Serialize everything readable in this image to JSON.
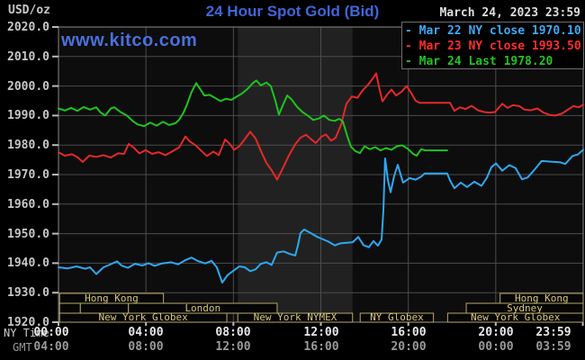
{
  "header": {
    "units_label": "USD/oz",
    "title": "24 Hour Spot Gold (Bid)",
    "timestamp": "March 24, 2023 23:59",
    "watermark": "www.kitco.com"
  },
  "legend": [
    {
      "label": "- Mar 22 NY close 1970.10",
      "color": "#3fa9f5"
    },
    {
      "label": "- Mar 23 NY close 1993.50",
      "color": "#ff2e2e"
    },
    {
      "label": "- Mar 24 Last 1978.20",
      "color": "#21c421"
    }
  ],
  "axes": {
    "ny_label": "NY Time",
    "gmt_label": "GMT",
    "y_ticks": [
      "2020.0",
      "2010.0",
      "2000.0",
      "1990.0",
      "1980.0",
      "1970.0",
      "1960.0",
      "1950.0",
      "1940.0",
      "1930.0",
      "1920.0"
    ],
    "x_ticks_ny": [
      "00:00",
      "04:00",
      "08:00",
      "12:00",
      "16:00",
      "20:00",
      "23:59"
    ],
    "x_ticks_gmt": [
      "04:00",
      "08:00",
      "12:00",
      "16:00",
      "20:00",
      "00:00",
      "03:59"
    ]
  },
  "sessions": [
    {
      "row": 1,
      "boxes": [
        {
          "label": "Hong Kong",
          "start_h": 0.05,
          "end_h": 4.8
        },
        {
          "label": "Hong Kong",
          "start_h": 20.2,
          "end_h": 24
        }
      ]
    },
    {
      "row": 2,
      "boxes": [
        {
          "label": "",
          "start_h": 0.05,
          "end_h": 1.0
        },
        {
          "label": "",
          "start_h": 1.0,
          "end_h": 3.2
        },
        {
          "label": "London",
          "start_h": 3.2,
          "end_h": 10.0
        },
        {
          "label": "Sydney",
          "start_h": 18.65,
          "end_h": 24
        }
      ]
    },
    {
      "row": 3,
      "boxes": [
        {
          "label": "New York Globex",
          "start_h": 0.05,
          "end_h": 7.7
        },
        {
          "label": "New York NYMEX",
          "start_h": 8.2,
          "end_h": 13.45
        },
        {
          "label": "NY Globex",
          "start_h": 13.8,
          "end_h": 17.15
        },
        {
          "label": "New York Globex",
          "start_h": 17.8,
          "end_h": 24
        }
      ]
    }
  ],
  "chart_data": {
    "type": "line",
    "title": "24 Hour Spot Gold (Bid)",
    "ylabel": "USD/oz",
    "ylim": [
      1920,
      2020
    ],
    "x_unit": "hours NY time",
    "xlim": [
      0,
      24
    ],
    "grid": true,
    "grid_y_step": 10,
    "grid_x_step_hours": 4,
    "legend_position": "top-right",
    "nymex_band_hours": [
      8.2,
      13.45
    ],
    "colors": {
      "plot_bg": "#0d0d0d",
      "band": "#212121",
      "grid": "#4c4c4c",
      "border": "#8a8a8a",
      "session_border": "#b7a86b",
      "session_text": "#d8c87e"
    },
    "series": [
      {
        "name": "Mar 22 NY close 1970.10",
        "color": "#2ea8f0",
        "points": [
          [
            0,
            1938.6
          ],
          [
            0.41,
            1938.2
          ],
          [
            0.82,
            1938.9
          ],
          [
            1.23,
            1938.1
          ],
          [
            1.44,
            1938.6
          ],
          [
            1.73,
            1936.3
          ],
          [
            2.06,
            1938.6
          ],
          [
            2.35,
            1939.5
          ],
          [
            2.68,
            1940.6
          ],
          [
            2.88,
            1939.2
          ],
          [
            3.17,
            1938.4
          ],
          [
            3.5,
            1939.8
          ],
          [
            3.83,
            1939.2
          ],
          [
            4.12,
            1940
          ],
          [
            4.4,
            1939.1
          ],
          [
            4.73,
            1939.9
          ],
          [
            5.15,
            1940.3
          ],
          [
            5.47,
            1939.6
          ],
          [
            5.8,
            1941
          ],
          [
            6.09,
            1941.9
          ],
          [
            6.38,
            1940.7
          ],
          [
            6.71,
            1939.9
          ],
          [
            7,
            1940.8
          ],
          [
            7.24,
            1938.6
          ],
          [
            7.49,
            1933.4
          ],
          [
            7.74,
            1936
          ],
          [
            8.03,
            1937.6
          ],
          [
            8.27,
            1938.9
          ],
          [
            8.52,
            1938.6
          ],
          [
            8.77,
            1937.3
          ],
          [
            9.01,
            1937.9
          ],
          [
            9.26,
            1939.8
          ],
          [
            9.51,
            1940.3
          ],
          [
            9.75,
            1939.4
          ],
          [
            10,
            1943.6
          ],
          [
            10.29,
            1944
          ],
          [
            10.58,
            1943.1
          ],
          [
            10.83,
            1942.6
          ],
          [
            10.95,
            1946
          ],
          [
            11.07,
            1950.2
          ],
          [
            11.24,
            1951.4
          ],
          [
            11.53,
            1950.2
          ],
          [
            11.81,
            1949
          ],
          [
            12.06,
            1948.2
          ],
          [
            12.35,
            1947.3
          ],
          [
            12.64,
            1946
          ],
          [
            12.88,
            1946.7
          ],
          [
            13.17,
            1946.9
          ],
          [
            13.46,
            1947.1
          ],
          [
            13.71,
            1948.9
          ],
          [
            13.95,
            1946.1
          ],
          [
            14.2,
            1945.4
          ],
          [
            14.41,
            1947.5
          ],
          [
            14.61,
            1945.9
          ],
          [
            14.78,
            1948
          ],
          [
            14.86,
            1958
          ],
          [
            14.94,
            1975.5
          ],
          [
            15.07,
            1968
          ],
          [
            15.19,
            1964
          ],
          [
            15.35,
            1969.5
          ],
          [
            15.52,
            1973.3
          ],
          [
            15.76,
            1967.3
          ],
          [
            16.05,
            1968.8
          ],
          [
            16.34,
            1968.3
          ],
          [
            16.59,
            1969.3
          ],
          [
            16.75,
            1970.4
          ],
          [
            17.78,
            1970.4
          ],
          [
            17.91,
            1968
          ],
          [
            18.11,
            1965.4
          ],
          [
            18.4,
            1967.3
          ],
          [
            18.69,
            1965.8
          ],
          [
            19.02,
            1967.6
          ],
          [
            19.35,
            1966.2
          ],
          [
            19.6,
            1969
          ],
          [
            19.8,
            1972.5
          ],
          [
            20.01,
            1973.8
          ],
          [
            20.3,
            1971.3
          ],
          [
            20.62,
            1973.2
          ],
          [
            20.91,
            1972.2
          ],
          [
            21.2,
            1968.4
          ],
          [
            21.45,
            1969
          ],
          [
            21.73,
            1971.3
          ],
          [
            22.1,
            1974.6
          ],
          [
            22.52,
            1974.4
          ],
          [
            22.93,
            1974.2
          ],
          [
            23.18,
            1973.6
          ],
          [
            23.51,
            1976.3
          ],
          [
            23.75,
            1976.8
          ],
          [
            24,
            1978.4
          ]
        ]
      },
      {
        "name": "Mar 23 NY close 1993.50",
        "color": "#e62828",
        "points": [
          [
            0,
            1977.6
          ],
          [
            0.29,
            1976.4
          ],
          [
            0.62,
            1976.9
          ],
          [
            0.86,
            1975.9
          ],
          [
            1.11,
            1974.3
          ],
          [
            1.4,
            1976.4
          ],
          [
            1.73,
            1976
          ],
          [
            2.06,
            1976.6
          ],
          [
            2.39,
            1975.8
          ],
          [
            2.72,
            1977.2
          ],
          [
            3,
            1977
          ],
          [
            3.21,
            1980.4
          ],
          [
            3.46,
            1979
          ],
          [
            3.7,
            1977.2
          ],
          [
            3.99,
            1978.3
          ],
          [
            4.28,
            1977
          ],
          [
            4.57,
            1977.6
          ],
          [
            4.9,
            1976.6
          ],
          [
            5.19,
            1977.8
          ],
          [
            5.52,
            1979.2
          ],
          [
            5.8,
            1982.9
          ],
          [
            6.01,
            1981.2
          ],
          [
            6.26,
            1980
          ],
          [
            6.54,
            1978
          ],
          [
            6.79,
            1976.3
          ],
          [
            7.08,
            1977.8
          ],
          [
            7.33,
            1976.6
          ],
          [
            7.62,
            1981.9
          ],
          [
            7.82,
            1980.5
          ],
          [
            8.03,
            1978.4
          ],
          [
            8.27,
            1979.6
          ],
          [
            8.52,
            1982
          ],
          [
            8.77,
            1984.5
          ],
          [
            9.01,
            1982.3
          ],
          [
            9.26,
            1978
          ],
          [
            9.51,
            1974
          ],
          [
            9.75,
            1971.5
          ],
          [
            10,
            1968.3
          ],
          [
            10.25,
            1972
          ],
          [
            10.54,
            1976.5
          ],
          [
            10.83,
            1980.3
          ],
          [
            11.07,
            1982.5
          ],
          [
            11.32,
            1983.5
          ],
          [
            11.57,
            1981.9
          ],
          [
            11.77,
            1980.7
          ],
          [
            12.02,
            1982.8
          ],
          [
            12.23,
            1983.6
          ],
          [
            12.47,
            1981.5
          ],
          [
            12.68,
            1982.5
          ],
          [
            12.93,
            1987
          ],
          [
            13.17,
            1994
          ],
          [
            13.42,
            1996.5
          ],
          [
            13.67,
            1996
          ],
          [
            13.91,
            1998.5
          ],
          [
            14.16,
            2000.5
          ],
          [
            14.37,
            2002.5
          ],
          [
            14.53,
            2004.3
          ],
          [
            14.65,
            2000
          ],
          [
            14.82,
            1994.8
          ],
          [
            15.02,
            1997
          ],
          [
            15.23,
            1998.8
          ],
          [
            15.44,
            1996.8
          ],
          [
            15.68,
            1998
          ],
          [
            15.93,
            2000
          ],
          [
            16.14,
            1997.5
          ],
          [
            16.34,
            1995
          ],
          [
            16.51,
            1994.3
          ],
          [
            17.91,
            1994.3
          ],
          [
            18.11,
            1991.6
          ],
          [
            18.36,
            1992.8
          ],
          [
            18.61,
            1992.2
          ],
          [
            18.9,
            1993.3
          ],
          [
            19.18,
            1991.8
          ],
          [
            19.47,
            1991.2
          ],
          [
            19.72,
            1991
          ],
          [
            19.96,
            1991.2
          ],
          [
            20.3,
            1994
          ],
          [
            20.54,
            1992.6
          ],
          [
            20.79,
            1993.5
          ],
          [
            21.08,
            1993.2
          ],
          [
            21.32,
            1992
          ],
          [
            21.61,
            1991.8
          ],
          [
            21.9,
            1992.4
          ],
          [
            22.18,
            1991
          ],
          [
            22.47,
            1990.2
          ],
          [
            22.72,
            1990
          ],
          [
            23.01,
            1990.6
          ],
          [
            23.26,
            1991.8
          ],
          [
            23.55,
            1993.2
          ],
          [
            23.79,
            1992.8
          ],
          [
            24,
            1993.7
          ]
        ]
      },
      {
        "name": "Mar 24 Last 1978.20",
        "color": "#1ec41e",
        "points": [
          [
            0,
            1992.4
          ],
          [
            0.29,
            1991.7
          ],
          [
            0.58,
            1992.6
          ],
          [
            0.86,
            1991.6
          ],
          [
            1.15,
            1992.9
          ],
          [
            1.44,
            1992
          ],
          [
            1.73,
            1992.8
          ],
          [
            1.93,
            1991
          ],
          [
            2.14,
            1990
          ],
          [
            2.39,
            1992.4
          ],
          [
            2.55,
            1992.8
          ],
          [
            2.84,
            1991.2
          ],
          [
            3.13,
            1990
          ],
          [
            3.42,
            1988
          ],
          [
            3.62,
            1987
          ],
          [
            3.91,
            1986.4
          ],
          [
            4.2,
            1987.6
          ],
          [
            4.49,
            1986.6
          ],
          [
            4.78,
            1987.9
          ],
          [
            5.06,
            1986.8
          ],
          [
            5.35,
            1987.4
          ],
          [
            5.52,
            1988.6
          ],
          [
            5.72,
            1991
          ],
          [
            5.89,
            1994
          ],
          [
            6.09,
            1998
          ],
          [
            6.3,
            2001
          ],
          [
            6.46,
            1999.2
          ],
          [
            6.67,
            1996.8
          ],
          [
            6.91,
            1997
          ],
          [
            7.16,
            1996
          ],
          [
            7.41,
            1994.9
          ],
          [
            7.66,
            1995.7
          ],
          [
            7.9,
            1995.3
          ],
          [
            8.15,
            1996.4
          ],
          [
            8.4,
            1997.5
          ],
          [
            8.64,
            1999
          ],
          [
            8.89,
            2001
          ],
          [
            9.05,
            2001.9
          ],
          [
            9.26,
            2000.2
          ],
          [
            9.51,
            2001.2
          ],
          [
            9.71,
            2000
          ],
          [
            9.92,
            1995
          ],
          [
            10.08,
            1990.3
          ],
          [
            10.29,
            1994
          ],
          [
            10.46,
            1996.8
          ],
          [
            10.66,
            1995.5
          ],
          [
            10.91,
            1993
          ],
          [
            11.16,
            1991.2
          ],
          [
            11.4,
            1990
          ],
          [
            11.65,
            1988.5
          ],
          [
            11.9,
            1989
          ],
          [
            12.14,
            1990
          ],
          [
            12.39,
            1988.5
          ],
          [
            12.64,
            1988.2
          ],
          [
            12.84,
            1988.9
          ],
          [
            13.01,
            1988
          ],
          [
            13.21,
            1983
          ],
          [
            13.38,
            1979.4
          ],
          [
            13.58,
            1978
          ],
          [
            13.79,
            1977.3
          ],
          [
            14,
            1979.6
          ],
          [
            14.24,
            1978.6
          ],
          [
            14.49,
            1979.3
          ],
          [
            14.73,
            1978.2
          ],
          [
            14.98,
            1979
          ],
          [
            15.23,
            1978.4
          ],
          [
            15.48,
            1979.6
          ],
          [
            15.72,
            1979.9
          ],
          [
            15.97,
            1978.8
          ],
          [
            16.22,
            1977
          ],
          [
            16.38,
            1976.4
          ],
          [
            16.59,
            1978.6
          ],
          [
            16.79,
            1978.2
          ],
          [
            17.78,
            1978.2
          ]
        ]
      }
    ]
  }
}
